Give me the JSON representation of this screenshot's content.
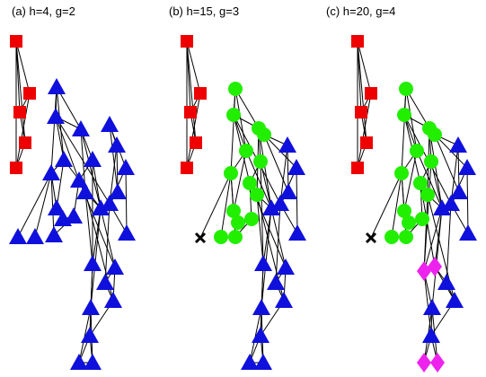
{
  "panels": [
    {
      "title": "(a) h=4, g=2",
      "groups": {
        "square": "rgb-red",
        "triangle": "blue"
      }
    },
    {
      "title": "(b) h=15, g=3",
      "groups": {
        "square": "red",
        "circle": "green",
        "triangle": "blue",
        "cross": "black"
      }
    },
    {
      "title": "(c) h=20, g=4",
      "groups": {
        "square": "red",
        "circle": "green",
        "triangle": "blue",
        "diamond": "magenta",
        "cross": "black"
      }
    }
  ],
  "colors": {
    "square": "#ee0000",
    "circle": "#22ee00",
    "triangle": "#1010dd",
    "diamond": "#ee22ee",
    "cross": "#000000",
    "edge": "#000000"
  },
  "node_shapes": [
    "red-square",
    "green-circle",
    "blue-triangle",
    "magenta-diamond",
    "black-cross"
  ]
}
